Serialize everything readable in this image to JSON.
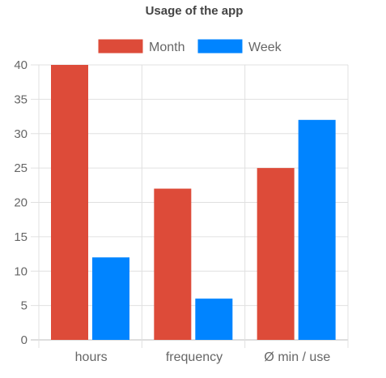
{
  "chart_data": {
    "type": "bar",
    "title": "Usage of the app",
    "categories": [
      "hours",
      "frequency",
      "Ø min / use"
    ],
    "series": [
      {
        "name": "Month",
        "values": [
          40,
          22,
          25
        ],
        "color": "#dd4b39"
      },
      {
        "name": "Week",
        "values": [
          12,
          6,
          32
        ],
        "color": "#0084ff"
      }
    ],
    "y_ticks": [
      "0",
      "5",
      "10",
      "15",
      "20",
      "25",
      "30",
      "35",
      "40"
    ],
    "ylim": [
      0,
      40
    ],
    "xlabel": "",
    "ylabel": "",
    "grid": true,
    "legend_position": "top"
  },
  "colors": {
    "grid": "#e0e0e0",
    "axis": "#bdbdbd",
    "text": "#666666",
    "title": "#444444"
  }
}
